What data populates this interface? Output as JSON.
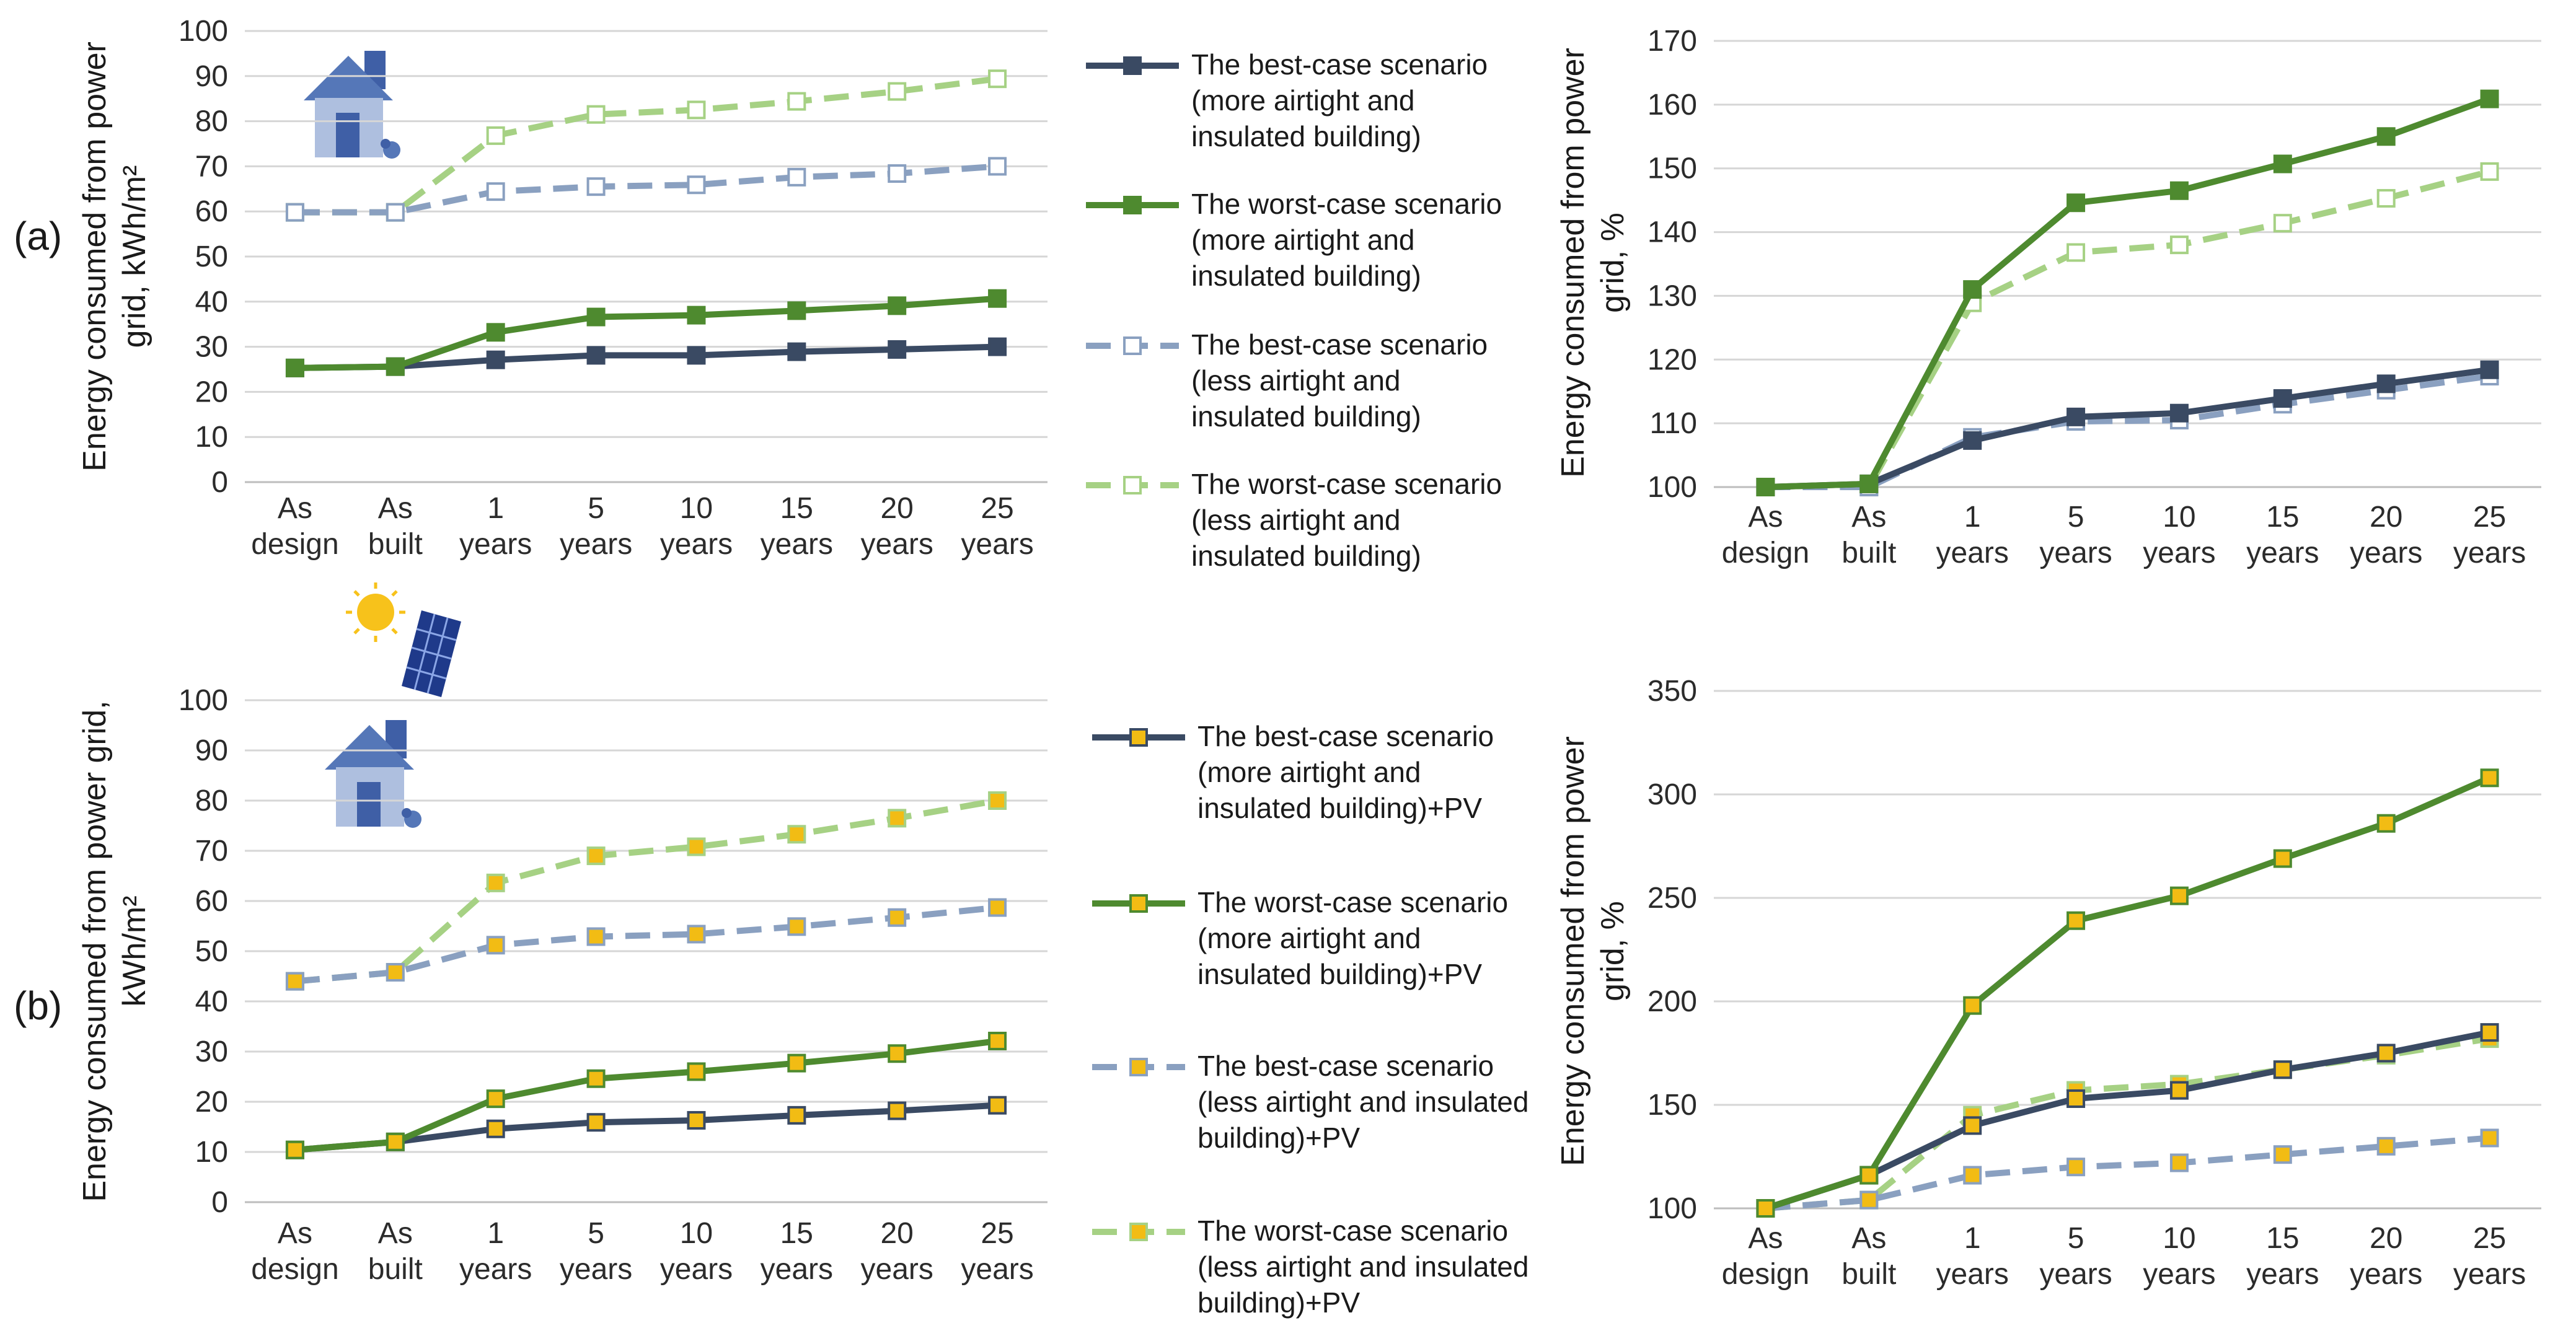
{
  "panel_labels": [
    "(a)",
    "(b)"
  ],
  "colors": {
    "dark_navy": "#3a4a63",
    "green": "#4e8a2f",
    "blue_grey": "#8aa0c0",
    "light_green": "#a6d184",
    "yellow_marker": "#f2bc14"
  },
  "icons": [
    "house-icon",
    "solar-panel-icon",
    "sun-icon"
  ],
  "legend_a": [
    {
      "lines": [
        "The best-case scenario",
        "(more airtight and",
        "insulated building)"
      ]
    },
    {
      "lines": [
        "The worst-case scenario",
        "(more airtight and",
        "insulated building)"
      ]
    },
    {
      "lines": [
        "The best-case scenario",
        "(less airtight and",
        "insulated building)"
      ]
    },
    {
      "lines": [
        "The worst-case scenario",
        "(less airtight and",
        "insulated building)"
      ]
    }
  ],
  "legend_b": [
    {
      "lines": [
        "The best-case scenario",
        "(more airtight and",
        "insulated building)+PV"
      ]
    },
    {
      "lines": [
        "The worst-case scenario",
        "(more airtight and",
        "insulated building)+PV"
      ]
    },
    {
      "lines": [
        "The best-case scenario",
        "(less airtight and insulated",
        "building)+PV"
      ]
    },
    {
      "lines": [
        "The worst-case scenario",
        "(less airtight and insulated",
        "building)+PV"
      ]
    }
  ],
  "chart_data": [
    {
      "id": "a-left",
      "type": "line",
      "categories": [
        [
          "As",
          "design"
        ],
        [
          "As",
          "built"
        ],
        [
          "1",
          "years"
        ],
        [
          "5",
          "years"
        ],
        [
          "10",
          "years"
        ],
        [
          "15",
          "years"
        ],
        [
          "20",
          "years"
        ],
        [
          "25",
          "years"
        ]
      ],
      "ylabel_lines": [
        "Energy consumed from power",
        "grid, kWh/m²"
      ],
      "ylim": [
        0,
        100
      ],
      "ystep": 10,
      "series": [
        {
          "name": "The best-case scenario (more airtight and insulated building)",
          "values": [
            25.3,
            25.6,
            27.1,
            28.1,
            28.1,
            28.9,
            29.4,
            30.0
          ]
        },
        {
          "name": "The worst-case scenario (more airtight and insulated building)",
          "values": [
            25.3,
            25.6,
            33.2,
            36.6,
            37.0,
            38.0,
            39.1,
            40.7
          ]
        },
        {
          "name": "The best-case scenario (less airtight and insulated building)",
          "values": [
            59.8,
            59.8,
            64.4,
            65.5,
            65.9,
            67.6,
            68.4,
            70.0
          ]
        },
        {
          "name": "The worst-case scenario (less airtight and insulated building)",
          "values": [
            59.8,
            59.8,
            76.8,
            81.5,
            82.5,
            84.4,
            86.6,
            89.4
          ]
        }
      ]
    },
    {
      "id": "a-right",
      "type": "line",
      "categories": [
        [
          "As",
          "design"
        ],
        [
          "As",
          "built"
        ],
        [
          "1",
          "years"
        ],
        [
          "5",
          "years"
        ],
        [
          "10",
          "years"
        ],
        [
          "15",
          "years"
        ],
        [
          "20",
          "years"
        ],
        [
          "25",
          "years"
        ]
      ],
      "ylabel_lines": [
        "Energy consumed from power",
        "grid, %"
      ],
      "ylim": [
        100,
        170
      ],
      "ystep": 10,
      "series": [
        {
          "name": "The best-case scenario (more airtight and insulated building)",
          "values": [
            100,
            100.5,
            107.3,
            111.0,
            111.6,
            113.9,
            116.2,
            118.4
          ]
        },
        {
          "name": "The worst-case scenario (more airtight and insulated building)",
          "values": [
            100,
            100.5,
            131.0,
            144.6,
            146.5,
            150.7,
            155.0,
            160.9
          ]
        },
        {
          "name": "The best-case scenario (less airtight and insulated building)",
          "values": [
            100,
            100.0,
            107.8,
            110.3,
            110.5,
            113.0,
            115.2,
            117.4
          ]
        },
        {
          "name": "The worst-case scenario (less airtight and insulated building)",
          "values": [
            100,
            100.0,
            128.9,
            136.8,
            138.0,
            141.4,
            145.3,
            149.5
          ]
        }
      ]
    },
    {
      "id": "b-left",
      "type": "line",
      "categories": [
        [
          "As",
          "design"
        ],
        [
          "As",
          "built"
        ],
        [
          "1",
          "years"
        ],
        [
          "5",
          "years"
        ],
        [
          "10",
          "years"
        ],
        [
          "15",
          "years"
        ],
        [
          "20",
          "years"
        ],
        [
          "25",
          "years"
        ]
      ],
      "ylabel_lines": [
        "Energy consumed from power grid,",
        "kWh/m²"
      ],
      "ylim": [
        0,
        100
      ],
      "ystep": 10,
      "series": [
        {
          "name": "The best-case scenario (more airtight and insulated building)+PV",
          "values": [
            10.4,
            12.0,
            14.6,
            15.9,
            16.3,
            17.3,
            18.2,
            19.3
          ]
        },
        {
          "name": "The worst-case scenario (more airtight and insulated building)+PV",
          "values": [
            10.4,
            12.0,
            20.6,
            24.6,
            26.0,
            27.7,
            29.6,
            32.1
          ]
        },
        {
          "name": "The best-case scenario (less airtight and insulated building)+PV",
          "values": [
            44.0,
            45.8,
            51.2,
            52.9,
            53.4,
            54.9,
            56.7,
            58.7
          ]
        },
        {
          "name": "The worst-case scenario (less airtight and insulated building)+PV",
          "values": [
            44.0,
            45.8,
            63.6,
            69.0,
            70.8,
            73.3,
            76.5,
            80.0
          ]
        }
      ]
    },
    {
      "id": "b-right",
      "type": "line",
      "categories": [
        [
          "As",
          "design"
        ],
        [
          "As",
          "built"
        ],
        [
          "1",
          "years"
        ],
        [
          "5",
          "years"
        ],
        [
          "10",
          "years"
        ],
        [
          "15",
          "years"
        ],
        [
          "20",
          "years"
        ],
        [
          "25",
          "years"
        ]
      ],
      "ylabel_lines": [
        "Energy consumed from power",
        "grid, %"
      ],
      "ylim": [
        100,
        350
      ],
      "ystep": 50,
      "series": [
        {
          "name": "The best-case scenario (more airtight and insulated building)+PV",
          "values": [
            100,
            116,
            140,
            153,
            157,
            167,
            175,
            185
          ]
        },
        {
          "name": "The worst-case scenario (more airtight and insulated building)+PV",
          "values": [
            100,
            116,
            198,
            239,
            251,
            269,
            286,
            308
          ]
        },
        {
          "name": "The best-case scenario (less airtight and insulated building)+PV",
          "values": [
            100,
            104,
            116,
            120,
            122,
            126,
            130,
            134
          ]
        },
        {
          "name": "The worst-case scenario (less airtight and insulated building)+PV",
          "values": [
            100,
            104,
            145,
            157,
            160,
            167,
            174,
            182
          ]
        }
      ]
    }
  ]
}
